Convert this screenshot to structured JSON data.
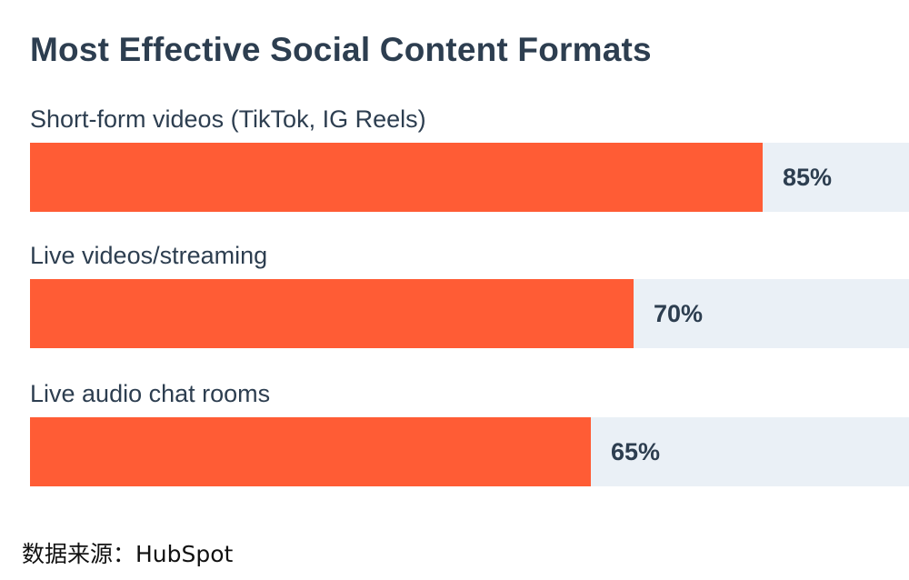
{
  "chart_data": {
    "type": "bar",
    "orientation": "horizontal",
    "title": "Most Effective Social Content Formats",
    "categories": [
      "Short-form videos (TikTok, IG Reels)",
      "Live videos/streaming",
      "Live audio chat rooms"
    ],
    "values": [
      85,
      70,
      65
    ],
    "value_labels": [
      "85%",
      "70%",
      "65%"
    ],
    "xlim": [
      0,
      100
    ],
    "grid": false,
    "legend": "none"
  },
  "source": "数据来源：HubSpot",
  "colors": {
    "bar": "#ff5c35",
    "track": "#eaf0f6",
    "text": "#2d3e50"
  }
}
